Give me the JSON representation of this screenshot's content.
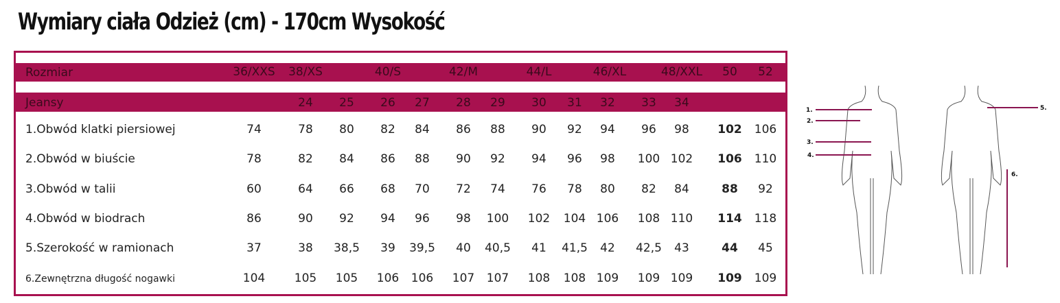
{
  "title": "Wymiary ciała Odzież (cm) - 170cm Wysokość",
  "colors": {
    "accent": "#a8114f"
  },
  "size_row": {
    "label": "Rozmiar",
    "sizes": [
      "36/XXS",
      "38/XS",
      "40/S",
      "42/M",
      "44/L",
      "46/XL",
      "48/XXL",
      "50",
      "52"
    ]
  },
  "jeans_row": {
    "label": "Jeansy",
    "sizes": [
      "24",
      "25",
      "26",
      "27",
      "28",
      "29",
      "30",
      "31",
      "32",
      "33",
      "34"
    ]
  },
  "rows": [
    {
      "label": "1.Obwód klatki piersiowej",
      "values": [
        "74",
        "78",
        "80",
        "82",
        "84",
        "86",
        "88",
        "90",
        "92",
        "94",
        "96",
        "98",
        "102",
        "106"
      ]
    },
    {
      "label": "2.Obwód w biuście",
      "values": [
        "78",
        "82",
        "84",
        "86",
        "88",
        "90",
        "92",
        "94",
        "96",
        "98",
        "100",
        "102",
        "106",
        "110"
      ]
    },
    {
      "label": "3.Obwód w talii",
      "values": [
        "60",
        "64",
        "66",
        "68",
        "70",
        "72",
        "74",
        "76",
        "78",
        "80",
        "82",
        "84",
        "88",
        "92"
      ]
    },
    {
      "label": "4.Obwód w biodrach",
      "values": [
        "86",
        "90",
        "92",
        "94",
        "96",
        "98",
        "100",
        "102",
        "104",
        "106",
        "108",
        "110",
        "114",
        "118"
      ]
    },
    {
      "label": "5.Szerokość w ramionach",
      "values": [
        "37",
        "38",
        "38,5",
        "39",
        "39,5",
        "40",
        "40,5",
        "41",
        "41,5",
        "42",
        "42,5",
        "43",
        "44",
        "45"
      ]
    },
    {
      "label": "6.Zewnętrzna długość nogawki",
      "values": [
        "104",
        "105",
        "105",
        "106",
        "106",
        "107",
        "107",
        "108",
        "108",
        "109",
        "109",
        "109",
        "109",
        "109"
      ]
    }
  ],
  "figure_labels": [
    "1.",
    "2.",
    "3.",
    "4.",
    "5.",
    "6."
  ]
}
